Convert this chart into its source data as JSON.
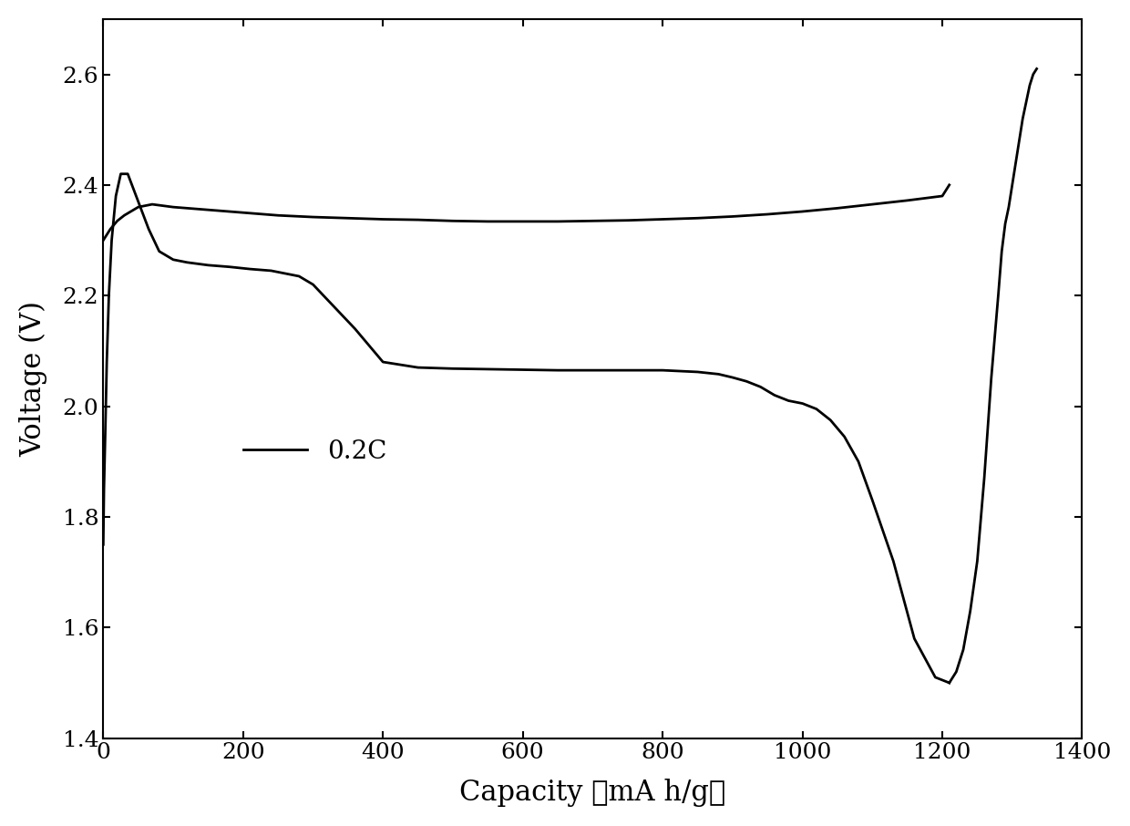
{
  "title": "",
  "xlabel": "Capacity （mA h/g）",
  "ylabel": "Voltage (V)",
  "xlim": [
    0,
    1400
  ],
  "ylim": [
    1.4,
    2.7
  ],
  "xticks": [
    0,
    200,
    400,
    600,
    800,
    1000,
    1200,
    1400
  ],
  "yticks": [
    1.4,
    1.6,
    1.8,
    2.0,
    2.2,
    2.4,
    2.6
  ],
  "legend_label": "0.2C",
  "line_color": "#000000",
  "line_width": 2.0,
  "background_color": "#ffffff",
  "discharge_x": [
    0,
    1,
    3,
    5,
    8,
    12,
    18,
    25,
    35,
    50,
    65,
    80,
    100,
    120,
    150,
    180,
    210,
    240,
    260,
    280,
    300,
    330,
    360,
    400,
    450,
    500,
    550,
    600,
    650,
    700,
    750,
    800,
    850,
    880,
    900,
    920,
    940,
    960,
    980,
    1000,
    1020,
    1040,
    1060,
    1080,
    1100,
    1130,
    1160,
    1190,
    1210
  ],
  "discharge_y": [
    1.75,
    1.85,
    1.96,
    2.08,
    2.2,
    2.3,
    2.38,
    2.42,
    2.42,
    2.37,
    2.32,
    2.28,
    2.265,
    2.26,
    2.255,
    2.252,
    2.248,
    2.245,
    2.24,
    2.235,
    2.22,
    2.18,
    2.14,
    2.08,
    2.07,
    2.068,
    2.067,
    2.066,
    2.065,
    2.065,
    2.065,
    2.065,
    2.062,
    2.058,
    2.052,
    2.045,
    2.035,
    2.02,
    2.01,
    2.005,
    1.995,
    1.975,
    1.945,
    1.9,
    1.83,
    1.72,
    1.58,
    1.51,
    1.5
  ],
  "charge_x": [
    1210,
    1220,
    1230,
    1240,
    1250,
    1260,
    1270,
    1280,
    1285,
    1290,
    1295,
    1300,
    1305,
    1310,
    1315,
    1320,
    1325,
    1330,
    1335
  ],
  "charge_y": [
    1.5,
    1.52,
    1.56,
    1.63,
    1.72,
    1.87,
    2.05,
    2.2,
    2.28,
    2.33,
    2.36,
    2.4,
    2.44,
    2.48,
    2.52,
    2.55,
    2.58,
    2.6,
    2.61
  ],
  "charge_upper_x": [
    0,
    5,
    10,
    20,
    30,
    50,
    70,
    100,
    150,
    200,
    250,
    300,
    350,
    400,
    450,
    500,
    550,
    600,
    650,
    700,
    750,
    800,
    850,
    900,
    950,
    1000,
    1050,
    1100,
    1150,
    1200,
    1210
  ],
  "charge_upper_y": [
    2.3,
    2.31,
    2.32,
    2.335,
    2.345,
    2.36,
    2.365,
    2.36,
    2.355,
    2.35,
    2.345,
    2.342,
    2.34,
    2.338,
    2.337,
    2.335,
    2.334,
    2.334,
    2.334,
    2.335,
    2.336,
    2.338,
    2.34,
    2.343,
    2.347,
    2.352,
    2.358,
    2.365,
    2.372,
    2.38,
    2.4
  ]
}
